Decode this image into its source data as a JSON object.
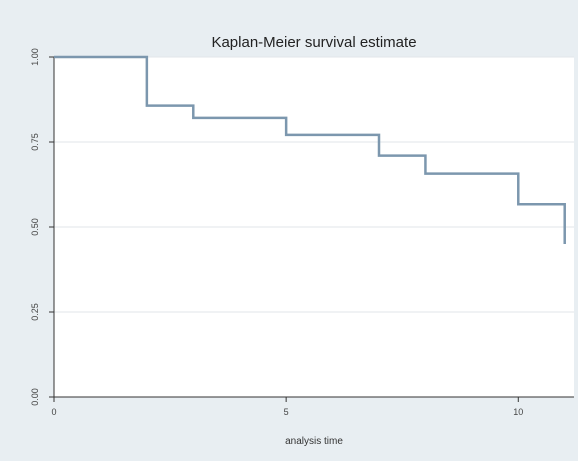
{
  "chart_data": {
    "type": "line",
    "step": true,
    "title": "Kaplan-Meier survival estimate",
    "xlabel": "analysis time",
    "ylabel": "",
    "xlim": [
      0,
      11.2
    ],
    "ylim": [
      0.0,
      1.0
    ],
    "x_ticks": [
      0,
      5,
      10
    ],
    "x_tick_labels": [
      "0",
      "5",
      "10"
    ],
    "y_ticks": [
      0.0,
      0.25,
      0.5,
      0.75,
      1.0
    ],
    "y_tick_labels": [
      "0.00",
      "0.25",
      "0.50",
      "0.75",
      "1.00"
    ],
    "grid": true,
    "legend": "none",
    "colors": {
      "outer_background": "#e8eef2",
      "plot_background": "#ffffff",
      "line": "#7c97ae",
      "axis": "#333333",
      "grid": "#e2e6ea"
    },
    "series": [
      {
        "x": [
          0,
          2,
          3,
          5,
          7,
          8,
          10,
          11
        ],
        "y": [
          1.0,
          0.857,
          0.821,
          0.771,
          0.71,
          0.657,
          0.567,
          0.45
        ]
      }
    ]
  }
}
